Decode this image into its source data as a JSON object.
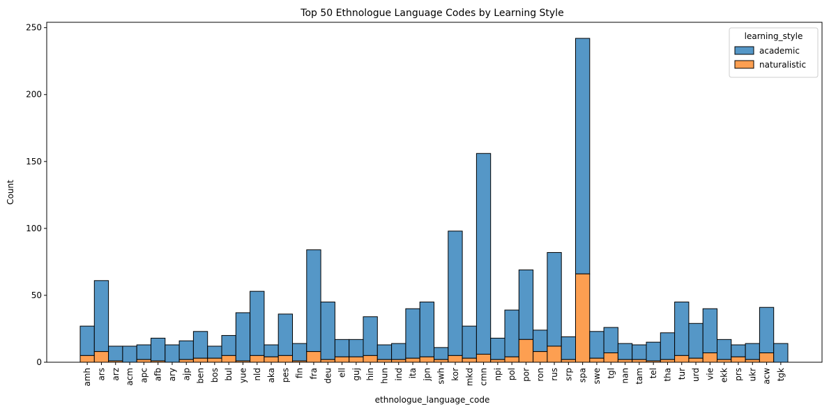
{
  "chart_data": {
    "type": "bar",
    "stacked": true,
    "title": "Top 50 Ethnologue Language Codes by Learning Style",
    "xlabel": "ethnologue_language_code",
    "ylabel": "Count",
    "ylim": [
      0,
      254
    ],
    "yticks": [
      0,
      50,
      100,
      150,
      200,
      250
    ],
    "grid": false,
    "legend": {
      "title": "learning_style",
      "placement": "top-right"
    },
    "categories": [
      "amh",
      "ars",
      "arz",
      "acm",
      "apc",
      "afb",
      "ary",
      "ajp",
      "ben",
      "bos",
      "bul",
      "yue",
      "nld",
      "aka",
      "pes",
      "fin",
      "fra",
      "deu",
      "ell",
      "guj",
      "hin",
      "hun",
      "ind",
      "ita",
      "jpn",
      "swh",
      "kor",
      "mkd",
      "cmn",
      "npi",
      "pol",
      "por",
      "ron",
      "rus",
      "srp",
      "spa",
      "swe",
      "tgl",
      "nan",
      "tam",
      "tel",
      "tha",
      "tur",
      "urd",
      "vie",
      "ekk",
      "prs",
      "ukr",
      "acw",
      "tgk"
    ],
    "series": [
      {
        "name": "academic",
        "color": "#5597c7",
        "values": [
          22,
          53,
          11,
          12,
          11,
          17,
          13,
          14,
          20,
          9,
          15,
          36,
          48,
          9,
          31,
          13,
          76,
          43,
          13,
          13,
          29,
          11,
          12,
          37,
          41,
          9,
          93,
          24,
          150,
          16,
          35,
          52,
          16,
          70,
          17,
          176,
          20,
          19,
          12,
          11,
          14,
          20,
          40,
          26,
          33,
          15,
          9,
          12,
          34,
          14
        ]
      },
      {
        "name": "naturalistic",
        "color": "#fd9f51",
        "values": [
          5,
          8,
          1,
          0,
          2,
          1,
          0,
          2,
          3,
          3,
          5,
          1,
          5,
          4,
          5,
          1,
          8,
          2,
          4,
          4,
          5,
          2,
          2,
          3,
          4,
          2,
          5,
          3,
          6,
          2,
          4,
          17,
          8,
          12,
          2,
          66,
          3,
          7,
          2,
          2,
          1,
          2,
          5,
          3,
          7,
          2,
          4,
          2,
          7,
          0
        ]
      }
    ]
  }
}
